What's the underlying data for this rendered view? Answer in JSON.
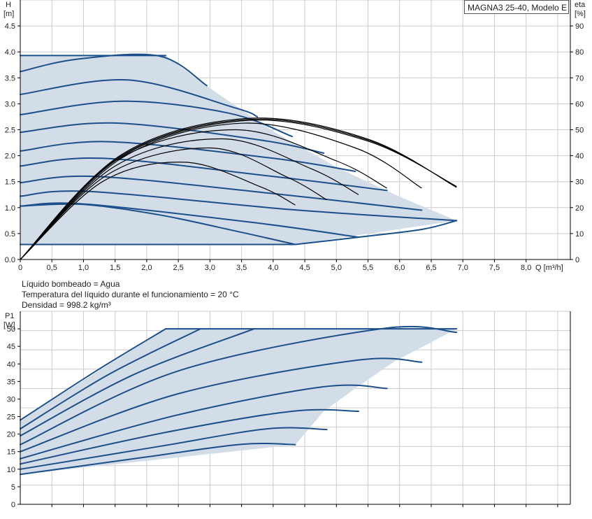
{
  "model_label": "MAGNA3 25-40, Modelo E",
  "info": {
    "liquid": "Líquido bombeado = Agua",
    "temperature": "Temperatura del líquido durante el funcionamiento = 20 °C",
    "density": "Densidad = 998.2 kg/m³"
  },
  "colors": {
    "curve": "#1b4f8a",
    "fill": "#d3dde8",
    "efficiency": "#000000",
    "grid": "#cccccc",
    "axis": "#000000"
  },
  "chart_data": [
    {
      "id": "head",
      "type": "line",
      "y_label": "H",
      "y_unit": "[m]",
      "y2_label": "eta",
      "y2_unit": "[%]",
      "x_label": "Q [m³/h]",
      "x_ticks": [
        "0",
        "0,5",
        "1,0",
        "1,5",
        "2,0",
        "2,5",
        "3,0",
        "3,5",
        "4,0",
        "4,5",
        "5,0",
        "5,5",
        "6,0",
        "6,5",
        "7,0",
        "7,5",
        "8,0"
      ],
      "y_ticks": [
        "0.0",
        "0.5",
        "1.0",
        "1.5",
        "2.0",
        "2.5",
        "3.0",
        "3.5",
        "4.0",
        "4.5"
      ],
      "y2_ticks": [
        "0",
        "10",
        "20",
        "30",
        "40",
        "50",
        "60",
        "70",
        "80",
        "90"
      ],
      "xlim": [
        0,
        8.7
      ],
      "ylim": [
        0,
        5.0
      ],
      "y2lim": [
        0,
        100
      ],
      "grid": true,
      "envelope": [
        [
          0,
          3.93
        ],
        [
          2.3,
          3.93
        ],
        [
          3.0,
          3.3
        ],
        [
          4.0,
          2.47
        ],
        [
          5.0,
          1.78
        ],
        [
          6.0,
          1.21
        ],
        [
          6.9,
          0.75
        ],
        [
          4.35,
          0.29
        ],
        [
          0,
          0.29
        ]
      ],
      "series": [
        {
          "x": [
            0,
            0.8,
            1.6,
            2.3
          ],
          "y": [
            3.93,
            3.93,
            3.93,
            3.93
          ]
        },
        {
          "x": [
            0,
            0.9,
            2.2,
            2.95
          ],
          "y": [
            3.62,
            3.86,
            3.92,
            3.35
          ]
        },
        {
          "x": [
            0,
            1.7,
            3.4,
            3.75
          ],
          "y": [
            3.18,
            3.46,
            2.92,
            2.75
          ]
        },
        {
          "x": [
            0,
            1.6,
            3.3,
            4.3
          ],
          "y": [
            2.79,
            3.05,
            2.82,
            2.37
          ]
        },
        {
          "x": [
            0,
            1.5,
            3.8,
            4.8
          ],
          "y": [
            2.45,
            2.63,
            2.3,
            2.05
          ]
        },
        {
          "x": [
            0,
            1.4,
            4.0,
            5.3
          ],
          "y": [
            2.09,
            2.27,
            1.95,
            1.7
          ]
        },
        {
          "x": [
            0,
            1.3,
            4.0,
            5.8
          ],
          "y": [
            1.8,
            1.95,
            1.6,
            1.33
          ]
        },
        {
          "x": [
            0,
            1.2,
            4.0,
            6.35
          ],
          "y": [
            1.48,
            1.6,
            1.27,
            0.95
          ]
        },
        {
          "x": [
            0,
            1.1,
            4.3,
            6.9
          ],
          "y": [
            1.22,
            1.31,
            0.96,
            0.75
          ]
        },
        {
          "x": [
            0,
            1.0,
            3.7,
            5.35
          ],
          "y": [
            1.03,
            1.07,
            0.71,
            0.43
          ]
        },
        {
          "x": [
            0,
            4.35
          ],
          "y": [
            0.29,
            0.29
          ]
        },
        {
          "x": [
            0,
            1.0,
            2.2,
            3.4,
            4.35
          ],
          "y": [
            1.03,
            1.06,
            0.86,
            0.55,
            0.29
          ]
        },
        {
          "x": [
            4.35,
            5.35,
            6.35,
            6.9
          ],
          "y": [
            0.29,
            0.43,
            0.58,
            0.75
          ]
        }
      ],
      "efficiency": [
        {
          "x": [
            0,
            1.6,
            3.6,
            5.5,
            6.9
          ],
          "y": [
            0,
            40,
            54,
            46,
            28
          ]
        },
        {
          "x": [
            0,
            1.6,
            3.6,
            5.5,
            6.9
          ],
          "y": [
            0,
            39.6,
            53.6,
            45.6,
            28.2
          ]
        },
        {
          "x": [
            0,
            1.6,
            3.6,
            5.5,
            6.9
          ],
          "y": [
            0,
            40.4,
            54.4,
            46.4,
            27.8
          ]
        },
        {
          "x": [
            0,
            1.6,
            3.5,
            5.3,
            6.35
          ],
          "y": [
            0,
            39,
            52.5,
            43,
            27.5
          ]
        },
        {
          "x": [
            0,
            1.5,
            3.4,
            5.0,
            5.8
          ],
          "y": [
            0,
            38,
            50,
            38,
            27.5
          ]
        },
        {
          "x": [
            0,
            1.5,
            3.2,
            4.6,
            5.35
          ],
          "y": [
            0,
            36,
            46.5,
            35,
            25
          ]
        },
        {
          "x": [
            0,
            1.4,
            3.0,
            4.2,
            4.85
          ],
          "y": [
            0,
            33,
            43,
            32,
            23
          ]
        },
        {
          "x": [
            0,
            1.3,
            2.6,
            3.8,
            4.35
          ],
          "y": [
            0,
            30,
            37.5,
            28,
            21
          ]
        }
      ]
    },
    {
      "id": "power",
      "type": "line",
      "y_label": "P1",
      "y_unit": "[W]",
      "y_ticks": [
        "0",
        "5",
        "10",
        "15",
        "20",
        "25",
        "30",
        "35",
        "40",
        "45",
        "50"
      ],
      "xlim": [
        0,
        8.7
      ],
      "ylim": [
        0,
        55
      ],
      "grid": true,
      "envelope": [
        [
          0,
          24
        ],
        [
          2.3,
          50
        ],
        [
          6.9,
          50
        ],
        [
          5.9,
          40.5
        ],
        [
          5.3,
          33
        ],
        [
          4.8,
          26.5
        ],
        [
          4.35,
          17
        ],
        [
          0,
          8.5
        ]
      ],
      "series": [
        {
          "x": [
            0,
            1.2,
            2.3
          ],
          "y": [
            24,
            38,
            50
          ]
        },
        {
          "x": [
            2.3,
            6.9
          ],
          "y": [
            50,
            50
          ]
        },
        {
          "x": [
            0,
            1.4,
            2.85
          ],
          "y": [
            21.5,
            37,
            50
          ]
        },
        {
          "x": [
            0,
            1.8,
            3.7
          ],
          "y": [
            19.5,
            37,
            50
          ]
        },
        {
          "x": [
            0,
            2.5,
            5.7,
            6.9
          ],
          "y": [
            17,
            38,
            50,
            49
          ]
        },
        {
          "x": [
            0,
            2.5,
            5.3,
            6.35
          ],
          "y": [
            15,
            31.5,
            41,
            40.5
          ]
        },
        {
          "x": [
            0,
            2.5,
            4.8,
            5.8
          ],
          "y": [
            13,
            25.5,
            33.5,
            33
          ]
        },
        {
          "x": [
            0,
            2.3,
            4.3,
            5.35
          ],
          "y": [
            11.5,
            20.5,
            26.5,
            26.5
          ]
        },
        {
          "x": [
            0,
            2.2,
            3.9,
            4.85
          ],
          "y": [
            10,
            16.5,
            21.5,
            21.3
          ]
        },
        {
          "x": [
            0,
            2.0,
            3.5,
            4.35
          ],
          "y": [
            8.5,
            13.5,
            17.1,
            17
          ]
        }
      ]
    }
  ]
}
